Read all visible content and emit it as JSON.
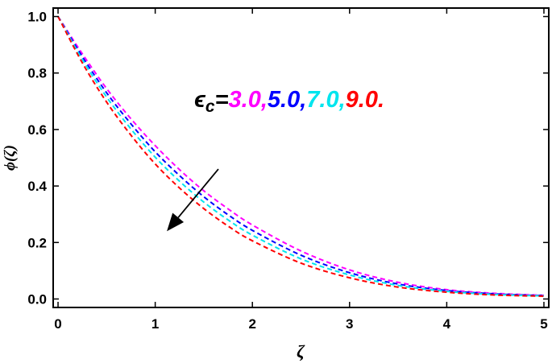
{
  "chart_data": {
    "type": "line",
    "title": "",
    "xlabel": "ζ",
    "ylabel": "ϕ(ζ)",
    "xlim": [
      -0.05,
      5.05
    ],
    "ylim": [
      -0.03,
      1.03
    ],
    "xticks": [
      0,
      1,
      2,
      3,
      4,
      5
    ],
    "yticks": [
      0.0,
      0.2,
      0.4,
      0.6,
      0.8,
      1.0
    ],
    "xtick_labels": [
      "0",
      "1",
      "2",
      "3",
      "4",
      "5"
    ],
    "ytick_labels": [
      "0.0",
      "0.2",
      "0.4",
      "0.6",
      "0.8",
      "1.0"
    ],
    "grid": false,
    "line_style": "dashed",
    "annotation": {
      "symbol": "ϵ",
      "subscript": "c",
      "equals": "=",
      "parts": [
        {
          "text": "3.0,",
          "color": "#ff00ff"
        },
        {
          "text": "5.0,",
          "color": "#0000ff"
        },
        {
          "text": "7.0,",
          "color": "#00e5ee"
        },
        {
          "text": "9.0.",
          "color": "#ff0000"
        }
      ]
    },
    "arrow": {
      "from": [
        1.65,
        0.46
      ],
      "to": [
        1.12,
        0.24
      ],
      "meaning": "increasing ϵc"
    },
    "series": [
      {
        "color": "#ff00ff",
        "x": [
          0,
          0.25,
          0.5,
          0.75,
          1.0,
          1.25,
          1.5,
          1.75,
          2.0,
          2.5,
          3.0,
          3.5,
          4.0,
          4.5,
          5.0
        ],
        "values": [
          1.0,
          0.868,
          0.745,
          0.638,
          0.543,
          0.458,
          0.383,
          0.319,
          0.262,
          0.17,
          0.103,
          0.059,
          0.033,
          0.02,
          0.013
        ]
      },
      {
        "color": "#0000ff",
        "x": [
          0,
          0.25,
          0.5,
          0.75,
          1.0,
          1.25,
          1.5,
          1.75,
          2.0,
          2.5,
          3.0,
          3.5,
          4.0,
          4.5,
          5.0
        ],
        "values": [
          1.0,
          0.858,
          0.73,
          0.62,
          0.521,
          0.437,
          0.362,
          0.298,
          0.243,
          0.155,
          0.093,
          0.053,
          0.03,
          0.018,
          0.012
        ]
      },
      {
        "color": "#00e5ee",
        "x": [
          0,
          0.25,
          0.5,
          0.75,
          1.0,
          1.25,
          1.5,
          1.75,
          2.0,
          2.5,
          3.0,
          3.5,
          4.0,
          4.5,
          5.0
        ],
        "values": [
          1.0,
          0.848,
          0.715,
          0.602,
          0.502,
          0.417,
          0.343,
          0.28,
          0.226,
          0.142,
          0.085,
          0.048,
          0.027,
          0.016,
          0.011
        ]
      },
      {
        "color": "#ff0000",
        "x": [
          0,
          0.25,
          0.5,
          0.75,
          1.0,
          1.25,
          1.5,
          1.75,
          2.0,
          2.5,
          3.0,
          3.5,
          4.0,
          4.5,
          5.0
        ],
        "values": [
          1.0,
          0.836,
          0.697,
          0.58,
          0.478,
          0.393,
          0.32,
          0.258,
          0.206,
          0.127,
          0.075,
          0.042,
          0.024,
          0.014,
          0.01
        ]
      }
    ]
  }
}
